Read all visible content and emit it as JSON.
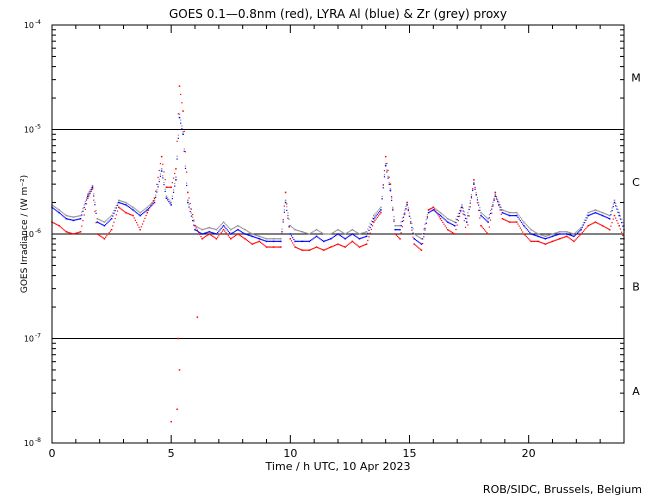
{
  "chart_data": {
    "type": "scatter",
    "title": "GOES 0.1—0.8nm (red), LYRA Al (blue) & Zr (grey) proxy",
    "xlabel": "Time / h UTC, 10 Apr 2023",
    "ylabel": "GOES Irradiance / (W m⁻²)",
    "xlim": [
      0,
      24
    ],
    "ylim": [
      1e-08,
      0.0001
    ],
    "yscale": "log",
    "x_ticks": [
      "0",
      "5",
      "10",
      "15",
      "20"
    ],
    "y_ticks": [
      {
        "base": "10",
        "exp": "-4"
      },
      {
        "base": "10",
        "exp": "-5"
      },
      {
        "base": "10",
        "exp": "-6"
      },
      {
        "base": "10",
        "exp": "-7"
      },
      {
        "base": "10",
        "exp": "-8"
      }
    ],
    "flare_classes": [
      {
        "label": "M",
        "value": 3.16e-05
      },
      {
        "label": "C",
        "value": 3.16e-06
      },
      {
        "label": "B",
        "value": 3.16e-07
      },
      {
        "label": "A",
        "value": 3.16e-08
      }
    ],
    "reference_lines": [
      1e-05,
      1e-06,
      1e-07
    ],
    "colors": {
      "red": "#ff0000",
      "blue": "#0000ff",
      "grey": "#909090",
      "axes": "#000000"
    },
    "series": [
      {
        "color": "red",
        "x": [
          0.0,
          0.3,
          0.6,
          0.9,
          1.2,
          1.5,
          1.7,
          1.9,
          2.2,
          2.5,
          2.8,
          3.1,
          3.4,
          3.7,
          4.0,
          4.3,
          4.6,
          4.8,
          5.0,
          5.2,
          5.35,
          5.5,
          5.7,
          6.0,
          6.3,
          6.6,
          6.9,
          7.2,
          7.5,
          7.8,
          8.1,
          8.4,
          8.7,
          9.0,
          9.3,
          9.6,
          9.8,
          10.0,
          10.2,
          10.5,
          10.8,
          11.1,
          11.4,
          11.7,
          12.0,
          12.3,
          12.6,
          12.9,
          13.2,
          13.5,
          13.8,
          14.0,
          14.2,
          14.4,
          14.6,
          14.9,
          15.2,
          15.5,
          15.8,
          16.0,
          16.3,
          16.6,
          16.9,
          17.2,
          17.4,
          17.7,
          18.0,
          18.3,
          18.6,
          18.9,
          19.2,
          19.5,
          19.8,
          20.1,
          20.4,
          20.7,
          21.0,
          21.3,
          21.6,
          21.9,
          22.2,
          22.5,
          22.8,
          23.1,
          23.4,
          23.6,
          23.8,
          24.0
        ],
        "y": [
          1.3e-06,
          1.2e-06,
          1.05e-06,
          1e-06,
          1.05e-06,
          2.2e-06,
          2.7e-06,
          1e-06,
          9e-07,
          1.1e-06,
          1.8e-06,
          1.6e-06,
          1.5e-06,
          1.1e-06,
          1.6e-06,
          2.2e-06,
          5.5e-06,
          2.8e-06,
          2.8e-06,
          4.2e-06,
          2.6e-05,
          1.5e-05,
          2.5e-06,
          1.2e-06,
          9e-07,
          1e-06,
          9e-07,
          1.1e-06,
          9e-07,
          1e-06,
          9e-07,
          8e-07,
          8.5e-07,
          7.5e-07,
          7.5e-07,
          7.5e-07,
          2.5e-06,
          9e-07,
          7.5e-07,
          7e-07,
          7e-07,
          7.5e-07,
          7e-07,
          7.5e-07,
          8e-07,
          7.5e-07,
          8.5e-07,
          7.5e-07,
          8e-07,
          1.3e-06,
          1.6e-06,
          5.5e-06,
          3e-06,
          1e-06,
          9e-07,
          2e-06,
          8e-07,
          7e-07,
          1.7e-06,
          1.8e-06,
          1.4e-06,
          1.1e-06,
          1e-06,
          1.8e-06,
          1e-06,
          3.3e-06,
          1.2e-06,
          1e-06,
          2.5e-06,
          1.4e-06,
          1.3e-06,
          1.3e-06,
          1e-06,
          8.5e-07,
          8.5e-07,
          8e-07,
          8.5e-07,
          9e-07,
          9.5e-07,
          8.5e-07,
          1e-06,
          1.2e-06,
          1.3e-06,
          1.2e-06,
          1.1e-06,
          1.5e-06,
          1.2e-06,
          9e-07
        ]
      },
      {
        "color": "blue",
        "x": [
          0.0,
          0.3,
          0.6,
          0.9,
          1.2,
          1.5,
          1.7,
          1.9,
          2.2,
          2.5,
          2.8,
          3.1,
          3.4,
          3.7,
          4.0,
          4.3,
          4.6,
          4.8,
          5.0,
          5.2,
          5.35,
          5.5,
          5.7,
          6.0,
          6.3,
          6.6,
          6.9,
          7.2,
          7.5,
          7.8,
          8.1,
          8.4,
          8.7,
          9.0,
          9.3,
          9.6,
          9.8,
          10.0,
          10.2,
          10.5,
          10.8,
          11.1,
          11.4,
          11.7,
          12.0,
          12.3,
          12.6,
          12.9,
          13.2,
          13.5,
          13.8,
          14.0,
          14.2,
          14.4,
          14.6,
          14.9,
          15.2,
          15.5,
          15.8,
          16.0,
          16.3,
          16.6,
          16.9,
          17.2,
          17.4,
          17.7,
          18.0,
          18.3,
          18.6,
          18.9,
          19.2,
          19.5,
          19.8,
          20.1,
          20.4,
          20.7,
          21.0,
          21.3,
          21.6,
          21.9,
          22.2,
          22.5,
          22.8,
          23.1,
          23.4,
          23.6,
          23.8,
          24.0
        ],
        "y": [
          1.8e-06,
          1.6e-06,
          1.4e-06,
          1.35e-06,
          1.4e-06,
          2.3e-06,
          2.8e-06,
          1.3e-06,
          1.2e-06,
          1.4e-06,
          2e-06,
          1.9e-06,
          1.7e-06,
          1.5e-06,
          1.7e-06,
          2e-06,
          4e-06,
          2.2e-06,
          1.9e-06,
          3.3e-06,
          1.3e-05,
          9e-06,
          2e-06,
          1.1e-06,
          1e-06,
          1.05e-06,
          1e-06,
          1.2e-06,
          1e-06,
          1.1e-06,
          1e-06,
          9.5e-07,
          9e-07,
          8.5e-07,
          8.5e-07,
          8.5e-07,
          2e-06,
          1e-06,
          8.5e-07,
          8.5e-07,
          8.5e-07,
          9.5e-07,
          8.5e-07,
          9e-07,
          1e-06,
          9e-07,
          1e-06,
          9e-07,
          9.5e-07,
          1.4e-06,
          1.7e-06,
          4.5e-06,
          2.6e-06,
          1.1e-06,
          1.1e-06,
          1.9e-06,
          9e-07,
          8e-07,
          1.6e-06,
          1.7e-06,
          1.5e-06,
          1.3e-06,
          1.2e-06,
          1.8e-06,
          1.3e-06,
          3e-06,
          1.5e-06,
          1.3e-06,
          2.3e-06,
          1.6e-06,
          1.5e-06,
          1.5e-06,
          1.2e-06,
          1e-06,
          9.5e-07,
          9e-07,
          9.5e-07,
          1e-06,
          1e-06,
          9.5e-07,
          1.1e-06,
          1.5e-06,
          1.6e-06,
          1.5e-06,
          1.4e-06,
          2e-06,
          1.5e-06,
          1.1e-06
        ]
      },
      {
        "color": "grey",
        "x": [
          0.0,
          0.3,
          0.6,
          0.9,
          1.2,
          1.5,
          1.7,
          1.9,
          2.2,
          2.5,
          2.8,
          3.1,
          3.4,
          3.7,
          4.0,
          4.3,
          4.6,
          4.8,
          5.0,
          5.2,
          5.35,
          5.5,
          5.7,
          6.0,
          6.3,
          6.6,
          6.9,
          7.2,
          7.5,
          7.8,
          8.1,
          8.4,
          8.7,
          9.0,
          9.3,
          9.6,
          9.8,
          10.0,
          10.2,
          10.5,
          10.8,
          11.1,
          11.4,
          11.7,
          12.0,
          12.3,
          12.6,
          12.9,
          13.2,
          13.5,
          13.8,
          14.0,
          14.2,
          14.4,
          14.6,
          14.9,
          15.2,
          15.5,
          15.8,
          16.0,
          16.3,
          16.6,
          16.9,
          17.2,
          17.4,
          17.7,
          18.0,
          18.3,
          18.6,
          18.9,
          19.2,
          19.5,
          19.8,
          20.1,
          20.4,
          20.7,
          21.0,
          21.3,
          21.6,
          21.9,
          22.2,
          22.5,
          22.8,
          23.1,
          23.4,
          23.6,
          23.8,
          24.0
        ],
        "y": [
          1.9e-06,
          1.7e-06,
          1.5e-06,
          1.45e-06,
          1.5e-06,
          2.4e-06,
          2.9e-06,
          1.4e-06,
          1.3e-06,
          1.5e-06,
          2.1e-06,
          2e-06,
          1.8e-06,
          1.6e-06,
          1.8e-06,
          2.1e-06,
          4.2e-06,
          2.3e-06,
          2e-06,
          3.5e-06,
          1.4e-05,
          9.5e-06,
          2.1e-06,
          1.2e-06,
          1.1e-06,
          1.15e-06,
          1.1e-06,
          1.3e-06,
          1.1e-06,
          1.2e-06,
          1.1e-06,
          1e-06,
          9.5e-07,
          9e-07,
          9e-07,
          9e-07,
          2.1e-06,
          1.2e-06,
          1.1e-06,
          1.05e-06,
          1e-06,
          1.1e-06,
          1e-06,
          1e-06,
          1.1e-06,
          1e-06,
          1.1e-06,
          1e-06,
          1.05e-06,
          1.5e-06,
          1.8e-06,
          4.7e-06,
          2.7e-06,
          1.2e-06,
          1.2e-06,
          2e-06,
          1e-06,
          9e-07,
          1.7e-06,
          1.8e-06,
          1.6e-06,
          1.4e-06,
          1.3e-06,
          1.9e-06,
          1.4e-06,
          3.1e-06,
          1.6e-06,
          1.4e-06,
          2.4e-06,
          1.7e-06,
          1.6e-06,
          1.6e-06,
          1.3e-06,
          1.1e-06,
          1e-06,
          9.5e-07,
          1e-06,
          1.05e-06,
          1.05e-06,
          1e-06,
          1.15e-06,
          1.6e-06,
          1.7e-06,
          1.6e-06,
          1.5e-06,
          2.1e-06,
          1.6e-06,
          1.2e-06
        ]
      },
      {
        "color": "red",
        "x": [
          5.0,
          5.25,
          5.3,
          5.35,
          6.1
        ],
        "y": [
          1.6e-08,
          2.1e-08,
          1e-07,
          5e-08,
          1.6e-07
        ]
      }
    ],
    "credit": "ROB/SIDC, Brussels, Belgium"
  }
}
